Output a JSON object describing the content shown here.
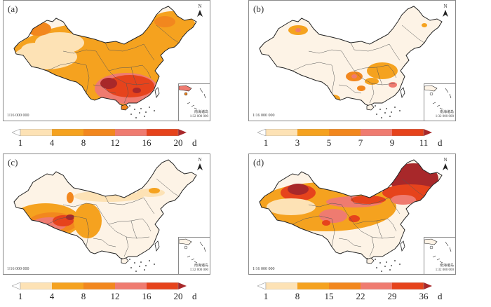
{
  "figure": {
    "north_label": "N",
    "main_scale": "1∶16 000 000",
    "inset_caption_line1": "南海诸岛",
    "inset_caption_line2": "1∶32 000 000",
    "unit": "d"
  },
  "colors": {
    "c0": "#fde2b5",
    "c1": "#f5a21f",
    "c2": "#f2871e",
    "c3": "#ef7b70",
    "c4": "#e6431c",
    "c5": "#a8282a",
    "low_arrow": "#ffffff",
    "border": "#333333",
    "background_fill": "#fdf3e6"
  },
  "chart_data": [
    {
      "type": "heatmap",
      "panel": "(a)",
      "title": "(a)",
      "colorbar": {
        "ticks": [
          "1",
          "4",
          "8",
          "12",
          "16",
          "20"
        ],
        "unit": "d",
        "extend": "both"
      },
      "description": "Highest values (16–20 d) in southern and southwestern China; moderate (4–12 d) across central and northeast; lowest (1–4 d) in the Tarim basin and Tibet plateau"
    },
    {
      "type": "heatmap",
      "panel": "(b)",
      "title": "(b)",
      "colorbar": {
        "ticks": [
          "1",
          "3",
          "5",
          "7",
          "9",
          "11"
        ],
        "unit": "d",
        "extend": "both"
      },
      "description": "Mostly 1–3 d; local maxima (7–11 d) in northern Xinjiang, Sichuan basin, Yunnan and Fujian/Jiangxi"
    },
    {
      "type": "heatmap",
      "panel": "(c)",
      "title": "(c)",
      "colorbar": {
        "ticks": [
          "1",
          "4",
          "8",
          "12",
          "16",
          "20"
        ],
        "unit": "d",
        "extend": "both"
      },
      "description": "Maximum (16–20+ d) over the Tibetan Plateau; moderate bands across northern China; low elsewhere"
    },
    {
      "type": "heatmap",
      "panel": "(d)",
      "title": "(d)",
      "colorbar": {
        "ticks": [
          "1",
          "8",
          "15",
          "22",
          "29",
          "36"
        ],
        "unit": "d",
        "extend": "both"
      },
      "description": "Highest (>36 d) in northeast China and northern Xinjiang; 15–29 d across northern and plateau regions; low (1–8 d) in southern China"
    }
  ],
  "panels": [
    {
      "label": "(a)",
      "ticks": [
        "1",
        "4",
        "8",
        "12",
        "16",
        "20"
      ]
    },
    {
      "label": "(b)",
      "ticks": [
        "1",
        "3",
        "5",
        "7",
        "9",
        "11"
      ]
    },
    {
      "label": "(c)",
      "ticks": [
        "1",
        "4",
        "8",
        "12",
        "16",
        "20"
      ]
    },
    {
      "label": "(d)",
      "ticks": [
        "1",
        "8",
        "15",
        "22",
        "29",
        "36"
      ]
    }
  ]
}
